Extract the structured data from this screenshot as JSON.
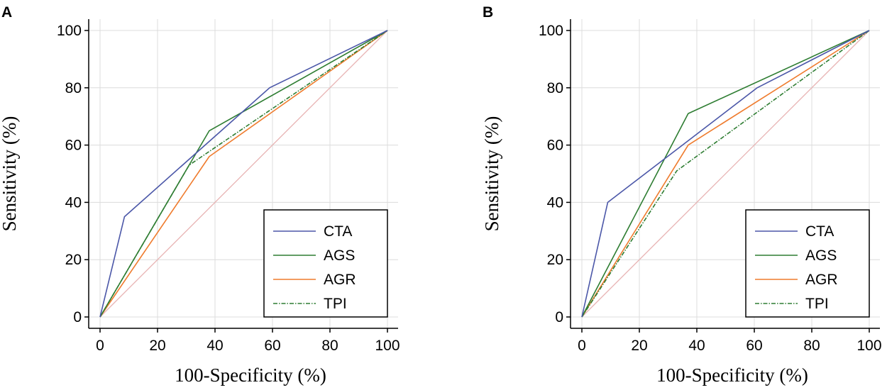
{
  "chart_data": [
    {
      "panel": "A",
      "type": "line",
      "xlabel": "100-Specificity (%)",
      "ylabel": "Sensitivity (%)",
      "xlim": [
        0,
        100
      ],
      "ylim": [
        0,
        100
      ],
      "xticks": [
        "0",
        "20",
        "40",
        "60",
        "80",
        "100"
      ],
      "yticks": [
        "0",
        "20",
        "40",
        "60",
        "80",
        "100"
      ],
      "grid": true,
      "legend_position": "bottom-right",
      "reference_line": {
        "x": [
          0,
          100
        ],
        "y": [
          0,
          100
        ],
        "color": "#e8b4b4"
      },
      "series": [
        {
          "name": "CTA",
          "color": "#4b57a8",
          "dash": "",
          "x": [
            0,
            8.5,
            59,
            100
          ],
          "y": [
            0,
            35,
            80,
            100
          ]
        },
        {
          "name": "AGS",
          "color": "#2e7d32",
          "dash": "",
          "x": [
            0,
            38,
            100
          ],
          "y": [
            0,
            65,
            100
          ]
        },
        {
          "name": "AGR",
          "color": "#ef7b2d",
          "dash": "",
          "x": [
            0,
            38,
            100
          ],
          "y": [
            0,
            56,
            100
          ]
        },
        {
          "name": "TPI",
          "color": "#2e7d32",
          "dash": "6 2 1.5 2",
          "x": [
            0,
            31,
            100
          ],
          "y": [
            0,
            53,
            100
          ]
        }
      ]
    },
    {
      "panel": "B",
      "type": "line",
      "xlabel": "100-Specificity (%)",
      "ylabel": "Sensitivity (%)",
      "xlim": [
        0,
        100
      ],
      "ylim": [
        0,
        100
      ],
      "xticks": [
        "0",
        "20",
        "40",
        "60",
        "80",
        "100"
      ],
      "yticks": [
        "0",
        "20",
        "40",
        "60",
        "80",
        "100"
      ],
      "grid": true,
      "legend_position": "bottom-right",
      "reference_line": {
        "x": [
          0,
          100
        ],
        "y": [
          0,
          100
        ],
        "color": "#e8b4b4"
      },
      "series": [
        {
          "name": "CTA",
          "color": "#4b57a8",
          "dash": "",
          "x": [
            0,
            9,
            61,
            100
          ],
          "y": [
            0,
            40,
            80,
            100
          ]
        },
        {
          "name": "AGS",
          "color": "#2e7d32",
          "dash": "",
          "x": [
            0,
            37,
            100
          ],
          "y": [
            0,
            71,
            100
          ]
        },
        {
          "name": "AGR",
          "color": "#ef7b2d",
          "dash": "",
          "x": [
            0,
            37,
            100
          ],
          "y": [
            0,
            60,
            100
          ]
        },
        {
          "name": "TPI",
          "color": "#2e7d32",
          "dash": "6 2 1.5 2",
          "x": [
            0,
            33,
            100
          ],
          "y": [
            0,
            51,
            100
          ]
        }
      ]
    }
  ]
}
